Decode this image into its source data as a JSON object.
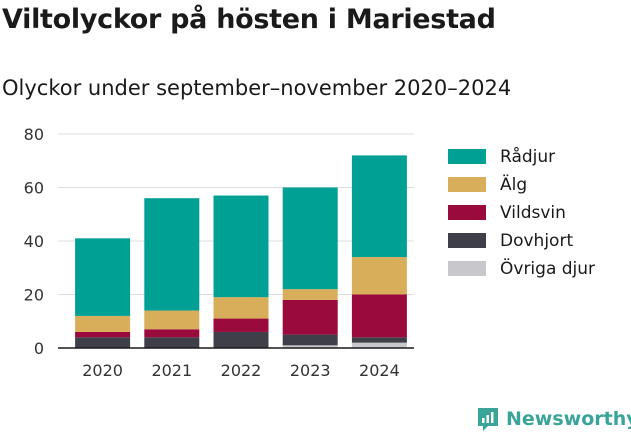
{
  "title": "Viltolyckor på hösten i Mariestad",
  "subtitle": "Olyckor under september–november 2020–2024",
  "brand": "Newsworthy",
  "chart_data": {
    "type": "bar",
    "stacked": true,
    "categories": [
      "2020",
      "2021",
      "2022",
      "2023",
      "2024"
    ],
    "series": [
      {
        "name": "Övriga djur",
        "color": "#c8c8cc",
        "values": [
          0,
          0,
          0,
          1,
          2
        ]
      },
      {
        "name": "Dovhjort",
        "color": "#3f3f4a",
        "values": [
          4,
          4,
          6,
          4,
          2
        ]
      },
      {
        "name": "Vildsvin",
        "color": "#9a0a3c",
        "values": [
          2,
          3,
          5,
          13,
          16
        ]
      },
      {
        "name": "Älg",
        "color": "#d9ae5a",
        "values": [
          6,
          7,
          8,
          4,
          14
        ]
      },
      {
        "name": "Rådjur",
        "color": "#00a095",
        "values": [
          29,
          42,
          38,
          38,
          38
        ]
      }
    ],
    "legend_order": [
      "Rådjur",
      "Älg",
      "Vildsvin",
      "Dovhjort",
      "Övriga djur"
    ],
    "yticks": [
      0,
      20,
      40,
      60,
      80
    ],
    "ylim": [
      0,
      80
    ],
    "grid": true,
    "legend_position": "right"
  }
}
